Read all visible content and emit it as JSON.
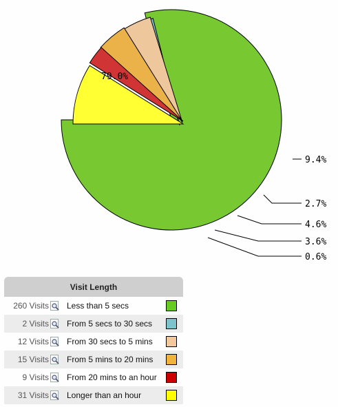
{
  "chart_data": {
    "type": "pie",
    "title": "",
    "slices": [
      {
        "label": "Less than 5 secs",
        "percent_label": "79.0%",
        "color": "#77c831",
        "exploded": false
      },
      {
        "label": "From 5 secs to 30 secs",
        "percent_label": "0.6%",
        "color": "#7fc2cb",
        "exploded": true
      },
      {
        "label": "From 30 secs to 5 mins",
        "percent_label": "3.6%",
        "color": "#efc79c",
        "exploded": true
      },
      {
        "label": "From 5 mins to 20 mins",
        "percent_label": "4.6%",
        "color": "#ebb24a",
        "exploded": true
      },
      {
        "label": "From 20 mins to an hour",
        "percent_label": "2.7%",
        "color": "#d03434",
        "exploded": true
      },
      {
        "label": "Longer than an hour",
        "percent_label": "9.4%",
        "color": "#ffff33",
        "exploded": true
      }
    ]
  },
  "legend": {
    "header": "Visit Length",
    "rows": [
      {
        "count": "260 Visits",
        "label": "Less than 5 secs",
        "color": "#66cc22"
      },
      {
        "count": "2 Visits",
        "label": "From 5 secs to 30 secs",
        "color": "#7fc2cb"
      },
      {
        "count": "12 Visits",
        "label": "From 30 secs to 5 mins",
        "color": "#f2c99e"
      },
      {
        "count": "15 Visits",
        "label": "From 5 mins to 20 mins",
        "color": "#f0b43c"
      },
      {
        "count": "9 Visits",
        "label": "From 20 mins to an hour",
        "color": "#cc0000"
      },
      {
        "count": "31 Visits",
        "label": "Longer than an hour",
        "color": "#ffff00"
      }
    ]
  }
}
